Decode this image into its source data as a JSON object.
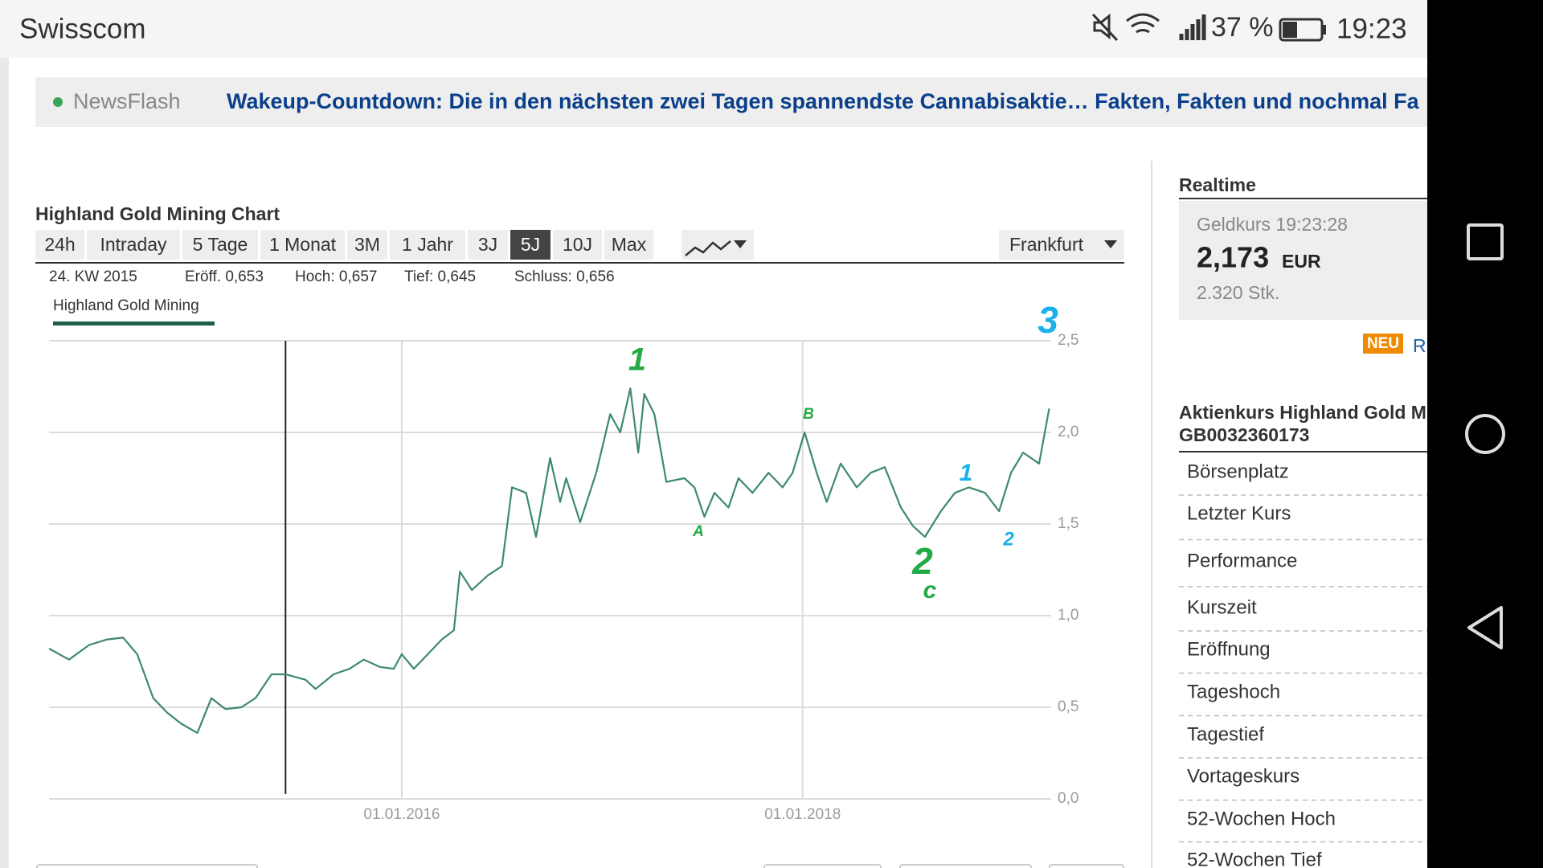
{
  "status_bar": {
    "carrier": "Swisscom",
    "battery": "37 %",
    "time": "19:23"
  },
  "newsflash": {
    "label": "NewsFlash",
    "headline": "Wakeup-Countdown: Die in den nächsten zwei Tagen spannendste Cannabisaktie… Fakten, Fakten und nochmal Fa"
  },
  "chart_panel": {
    "title": "Highland Gold Mining Chart",
    "tabs": [
      "24h",
      "Intraday",
      "5 Tage",
      "1 Monat",
      "3M",
      "1 Jahr",
      "3J",
      "5J",
      "10J",
      "Max"
    ],
    "selected_tab": 7,
    "exchange": "Frankfurt",
    "info": [
      "24. KW 2015",
      "Eröff. 0,653",
      "Hoch: 0,657",
      "Tief: 0,645",
      "Schluss: 0,656"
    ]
  },
  "chart_data": {
    "type": "line",
    "x": [
      2014.24,
      2014.34,
      2014.44,
      2014.53,
      2014.61,
      2014.68,
      2014.76,
      2014.83,
      2014.9,
      2014.98,
      2015.05,
      2015.12,
      2015.2,
      2015.27,
      2015.35,
      2015.42,
      2015.52,
      2015.57,
      2015.66,
      2015.74,
      2015.81,
      2015.89,
      2015.96,
      2016.0,
      2016.06,
      2016.13,
      2016.2,
      2016.26,
      2016.29,
      2016.35,
      2016.43,
      2016.5,
      2016.55,
      2016.62,
      2016.67,
      2016.74,
      2016.79,
      2016.82,
      2016.89,
      2016.97,
      2017.04,
      2017.09,
      2017.14,
      2017.18,
      2017.21,
      2017.26,
      2017.32,
      2017.41,
      2017.46,
      2017.51,
      2017.56,
      2017.63,
      2017.68,
      2017.75,
      2017.83,
      2017.9,
      2017.95,
      2018.01,
      2018.07,
      2018.12,
      2018.19,
      2018.27,
      2018.34,
      2018.41,
      2018.49,
      2018.55,
      2018.61,
      2018.69,
      2018.76,
      2018.83,
      2018.91,
      2018.98,
      2019.04,
      2019.1,
      2019.18,
      2019.23
    ],
    "series": [
      {
        "name": "Highland Gold Mining",
        "color": "#3d8a6a",
        "values": [
          0.82,
          0.76,
          0.84,
          0.87,
          0.88,
          0.79,
          0.55,
          0.47,
          0.41,
          0.36,
          0.55,
          0.49,
          0.5,
          0.55,
          0.68,
          0.68,
          0.65,
          0.6,
          0.68,
          0.71,
          0.76,
          0.72,
          0.71,
          0.79,
          0.71,
          0.79,
          0.87,
          0.92,
          1.24,
          1.14,
          1.22,
          1.27,
          1.7,
          1.67,
          1.43,
          1.86,
          1.62,
          1.75,
          1.51,
          1.78,
          2.1,
          2.0,
          2.24,
          1.89,
          2.21,
          2.1,
          1.73,
          1.75,
          1.7,
          1.54,
          1.67,
          1.59,
          1.75,
          1.67,
          1.78,
          1.7,
          1.78,
          2.0,
          1.78,
          1.62,
          1.83,
          1.7,
          1.78,
          1.81,
          1.59,
          1.49,
          1.43,
          1.57,
          1.67,
          1.7,
          1.67,
          1.57,
          1.78,
          1.89,
          1.83,
          2.13
        ]
      }
    ],
    "xlim": [
      2014.24,
      2019.24
    ],
    "xticks": [
      {
        "value": 2016,
        "label": "01.01.2016"
      },
      {
        "value": 2018,
        "label": "01.01.2018"
      }
    ],
    "ylim": [
      0,
      2.5
    ],
    "yticks": [
      {
        "value": 0,
        "label": "0,0"
      },
      {
        "value": 0.5,
        "label": "0,5"
      },
      {
        "value": 1,
        "label": "1,0"
      },
      {
        "value": 1.5,
        "label": "1,5"
      },
      {
        "value": 2,
        "label": "2,0"
      },
      {
        "value": 2.5,
        "label": "2,5"
      }
    ],
    "grid": true,
    "crosshair_x": 2015.42,
    "annotations": [
      {
        "text": "1",
        "color": "#22aa44"
      },
      {
        "text": "B",
        "color": "#22aa44"
      },
      {
        "text": "A",
        "color": "#22aa44"
      },
      {
        "text": "3",
        "color": "#1ab0e8"
      },
      {
        "text": "1",
        "color": "#1ab0e8"
      },
      {
        "text": "2",
        "color": "#1ab0e8"
      },
      {
        "text": "2",
        "color": "#22aa44"
      },
      {
        "text": "c",
        "color": "#22aa44"
      }
    ]
  },
  "realtime": {
    "heading": "Realtime",
    "label": "Geldkurs 19:23:28",
    "price": "2,173",
    "currency": "EUR",
    "volume": "2.320 Stk."
  },
  "badge": {
    "text": "NEU",
    "link": "R"
  },
  "stock_table": {
    "title": "Aktienkurs Highland Gold M",
    "isin": "GB0032360173",
    "rows": [
      "Börsenplatz",
      "Letzter Kurs",
      "Performance",
      "Kurszeit",
      "Eröffnung",
      "Tageshoch",
      "Tagestief",
      "Vortageskurs",
      "52-Wochen Hoch",
      "52-Wochen Tief"
    ]
  }
}
